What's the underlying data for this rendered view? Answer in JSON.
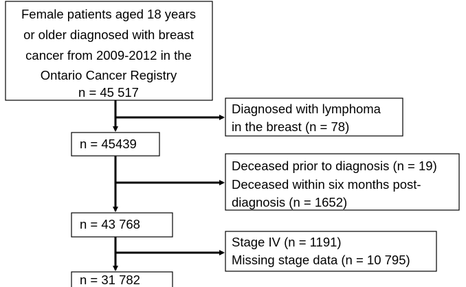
{
  "nodes": [
    {
      "lines": [
        "Female patients aged 18 years",
        "or older diagnosed with breast",
        "cancer from 2009-2012 in the",
        "Ontario Cancer Registry",
        "n = 45 517"
      ]
    },
    {
      "lines": [
        "Diagnosed with lymphoma",
        "in the breast (n = 78)"
      ]
    },
    {
      "lines": [
        "n = 45439"
      ]
    },
    {
      "lines": [
        "Deceased prior to diagnosis (n = 19)",
        "Deceased within six months post-",
        "diagnosis (n = 1652)"
      ]
    },
    {
      "lines": [
        "n = 43 768"
      ]
    },
    {
      "lines": [
        "Stage IV (n = 1191)",
        "Missing stage data (n = 10 795)"
      ]
    },
    {
      "lines": [
        "n = 31 782"
      ]
    }
  ]
}
